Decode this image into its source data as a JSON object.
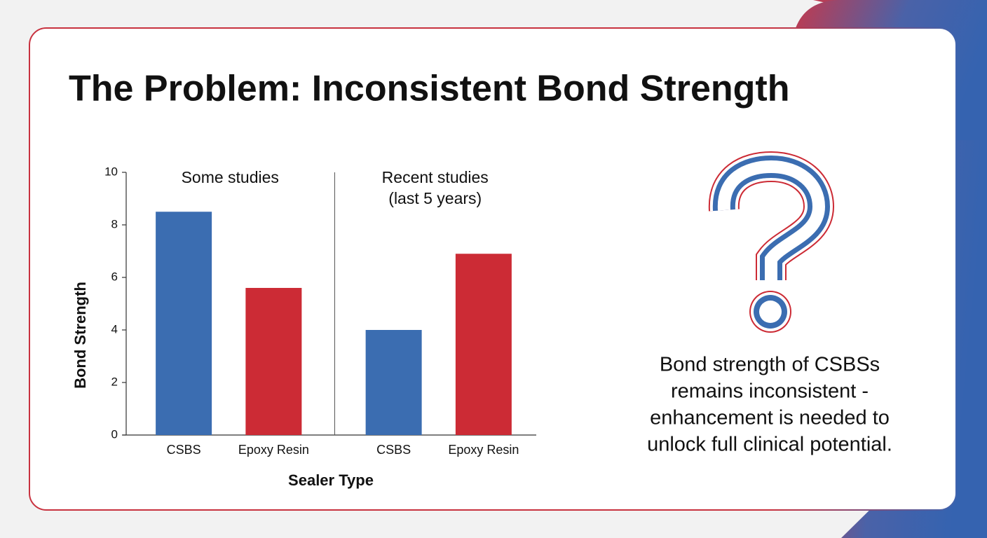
{
  "title": "The Problem: Inconsistent Bond Strength",
  "chart_data": {
    "type": "bar",
    "ylabel": "Bond Strength",
    "xlabel": "Sealer Type",
    "ylim": [
      0,
      10
    ],
    "yticks": [
      0,
      2,
      4,
      6,
      8,
      10
    ],
    "groups": [
      {
        "title": "Some studies",
        "categories": [
          "CSBS",
          "Epoxy Resin"
        ],
        "values": [
          8.5,
          5.6
        ],
        "colors": [
          "#3b6db1",
          "#cc2b35"
        ]
      },
      {
        "title": "Recent studies",
        "subtitle": "(last 5 years)",
        "categories": [
          "CSBS",
          "Epoxy Resin"
        ],
        "values": [
          4.0,
          6.9
        ],
        "colors": [
          "#3b6db1",
          "#cc2b35"
        ]
      }
    ]
  },
  "caption": [
    "Bond strength of CSBSs",
    "remains inconsistent -",
    "enhancement is needed to",
    "unlock full clinical potential."
  ]
}
